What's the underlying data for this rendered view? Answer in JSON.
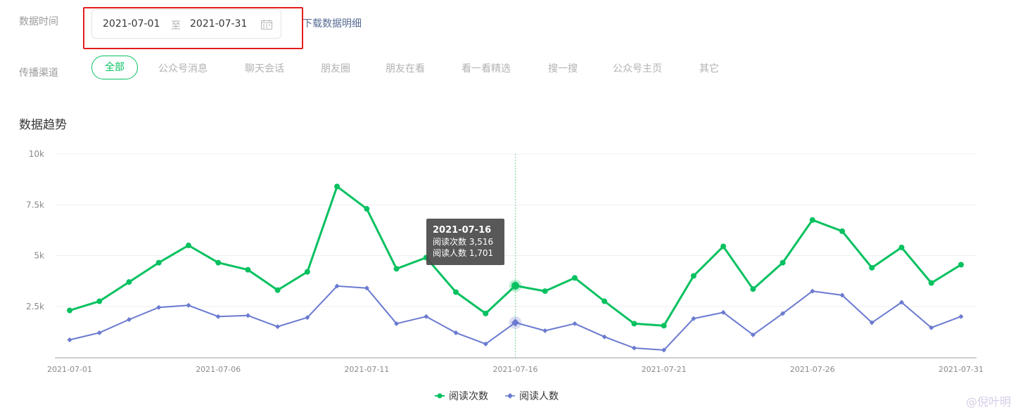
{
  "filters": {
    "time_label": "数据时间",
    "date_start": "2021-07-01",
    "date_sep": "至",
    "date_end": "2021-07-31",
    "download_label": "下载数据明细",
    "channel_label": "传播渠道",
    "channels": [
      "全部",
      "公众号消息",
      "聊天会话",
      "朋友圈",
      "朋友在看",
      "看一看精选",
      "搜一搜",
      "公众号主页",
      "其它"
    ],
    "active_channel": "全部"
  },
  "section_title": "数据趋势",
  "watermark": "@倪叶明",
  "colors": {
    "green": "#07c160",
    "purple": "#6a7ad0",
    "highlight_frame": "#e41d1d"
  },
  "tooltip": {
    "date": "2021-07-16",
    "line1": "阅读次数 3,516",
    "line2": "阅读人数 1,701"
  },
  "chart_data": {
    "type": "line",
    "x": [
      "2021-07-01",
      "2021-07-02",
      "2021-07-03",
      "2021-07-04",
      "2021-07-05",
      "2021-07-06",
      "2021-07-07",
      "2021-07-08",
      "2021-07-09",
      "2021-07-10",
      "2021-07-11",
      "2021-07-12",
      "2021-07-13",
      "2021-07-14",
      "2021-07-15",
      "2021-07-16",
      "2021-07-17",
      "2021-07-18",
      "2021-07-19",
      "2021-07-20",
      "2021-07-21",
      "2021-07-22",
      "2021-07-23",
      "2021-07-24",
      "2021-07-25",
      "2021-07-26",
      "2021-07-27",
      "2021-07-28",
      "2021-07-29",
      "2021-07-30",
      "2021-07-31"
    ],
    "x_tick_labels": [
      "2021-07-01",
      "2021-07-06",
      "2021-07-11",
      "2021-07-16",
      "2021-07-21",
      "2021-07-26",
      "2021-07-31"
    ],
    "y_tick_labels": [
      "10k",
      "7.5k",
      "5k",
      "2.5k"
    ],
    "y_tick_values": [
      10000,
      7500,
      5000,
      2500
    ],
    "ylim": [
      0,
      10000
    ],
    "highlight_date": "2021-07-16",
    "series": [
      {
        "name": "阅读次数",
        "color": "#07c160",
        "marker": "circle",
        "values": [
          2300,
          2750,
          3700,
          4650,
          5500,
          4650,
          4300,
          3300,
          4200,
          8400,
          7300,
          4350,
          4900,
          3200,
          2150,
          3516,
          3250,
          3900,
          2750,
          1650,
          1550,
          4000,
          5450,
          3350,
          4650,
          6750,
          6200,
          4400,
          5400,
          3650,
          4550
        ]
      },
      {
        "name": "阅读人数",
        "color": "#6a7ad0",
        "marker": "diamond",
        "values": [
          850,
          1200,
          1850,
          2450,
          2550,
          2000,
          2050,
          1500,
          1950,
          3500,
          3400,
          1650,
          2000,
          1200,
          650,
          1701,
          1300,
          1650,
          1000,
          450,
          350,
          1900,
          2200,
          1100,
          2150,
          3250,
          3050,
          1700,
          2700,
          1450,
          2000
        ]
      }
    ]
  }
}
